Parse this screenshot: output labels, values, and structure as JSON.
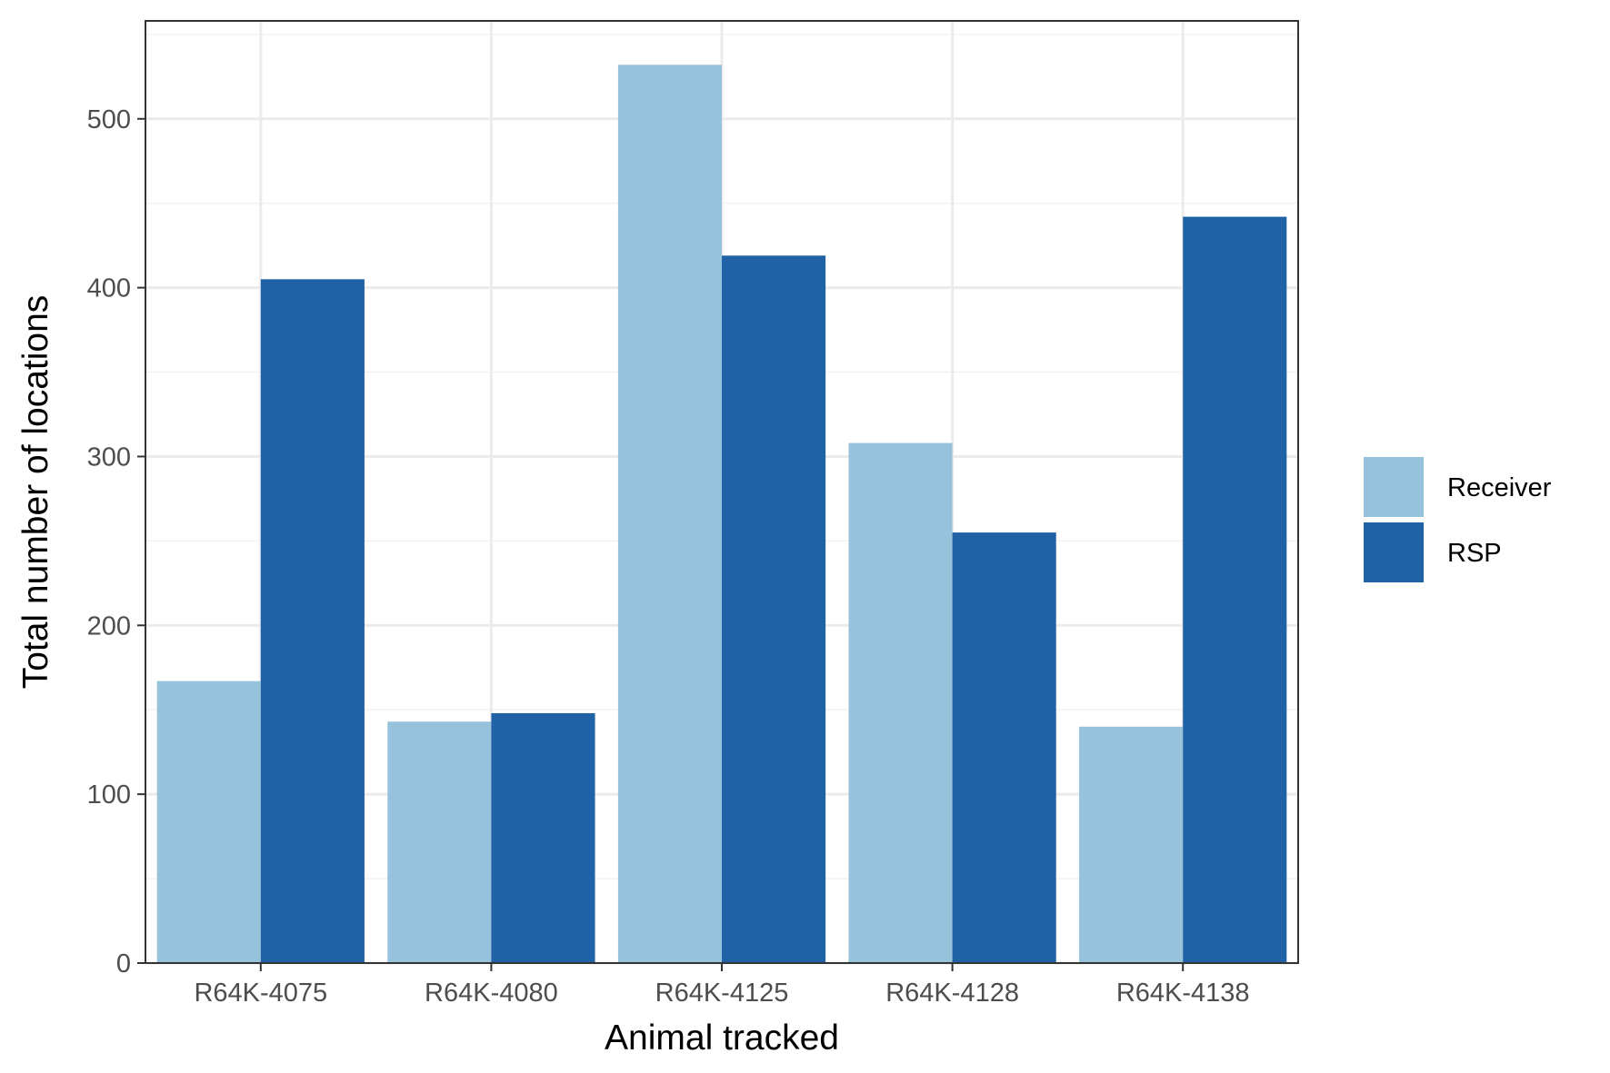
{
  "chart_data": {
    "type": "bar",
    "title": "",
    "xlabel": "Animal tracked",
    "ylabel": "Total number of locations",
    "categories": [
      "R64K-4075",
      "R64K-4080",
      "R64K-4125",
      "R64K-4128",
      "R64K-4138"
    ],
    "series": [
      {
        "name": "Receiver",
        "color": "#97c2db",
        "values": [
          167,
          143,
          532,
          308,
          140
        ]
      },
      {
        "name": "RSP",
        "color": "#1f62a5",
        "values": [
          405,
          148,
          419,
          255,
          442
        ]
      }
    ],
    "ylim": [
      0,
      558
    ],
    "yticks": [
      0,
      100,
      200,
      300,
      400,
      500
    ],
    "grid": true,
    "legend_position": "right",
    "colors": {
      "panel_border": "#333333",
      "grid_major": "#ebebeb",
      "grid_minor": "#f2f2f2"
    }
  }
}
